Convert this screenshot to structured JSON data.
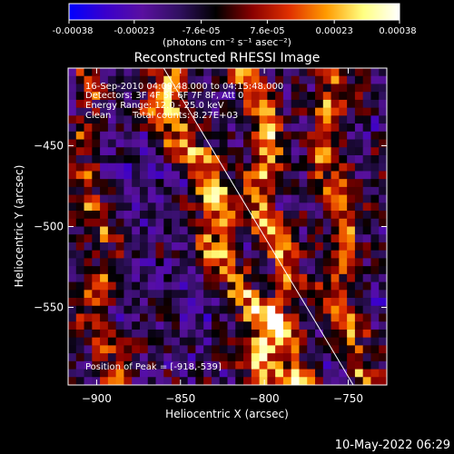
{
  "colorbar": {
    "tick_labels": [
      "-0.00038",
      "-0.00023",
      "-7.6e-05",
      "7.6e-05",
      "0.00023",
      "0.00038"
    ],
    "tick_values": [
      -0.00038,
      -0.00023,
      -7.6e-05,
      7.6e-05,
      0.00023,
      0.00038
    ],
    "range": [
      -0.00038,
      0.00038
    ],
    "unit_label": "(photons cm⁻² s⁻¹ asec⁻²)",
    "colormap": [
      "#0000ff",
      "#3a00cc",
      "#5a10a0",
      "#301060",
      "#000000",
      "#8a0000",
      "#e03000",
      "#ff9a00",
      "#ffff80",
      "#ffffff"
    ]
  },
  "chart_data": {
    "type": "heatmap",
    "title": "Reconstructed RHESSI Image",
    "xlabel": "Heliocentric X (arcsec)",
    "ylabel": "Heliocentric Y (arcsec)",
    "xlim": [
      -917,
      -727
    ],
    "ylim": [
      -598,
      -402
    ],
    "x_ticks": [
      -900,
      -850,
      -800,
      -750
    ],
    "x_tick_labels": [
      "−900",
      "−850",
      "−800",
      "−750"
    ],
    "y_ticks": [
      -450,
      -500,
      -550
    ],
    "y_tick_labels": [
      "−450",
      "−500",
      "−550"
    ],
    "limb_line": [
      [
        -860,
        -402
      ],
      [
        -747,
        -598
      ]
    ],
    "annotations": {
      "time_range": "16-Sep-2010 04:09:48.000 to 04:15:48.000",
      "detectors": "Detectors: 3F 4F 5F 6F 7F 8F, Att 0",
      "energy_range": "Energy Range: 12.0 - 25.0 keV",
      "algorithm": "Clean",
      "total_counts": "Total counts: 8.27E+03",
      "peak_position": "Position of Peak = [-918,-539]"
    }
  },
  "footer": {
    "date": "10-May-2022 06:29"
  }
}
